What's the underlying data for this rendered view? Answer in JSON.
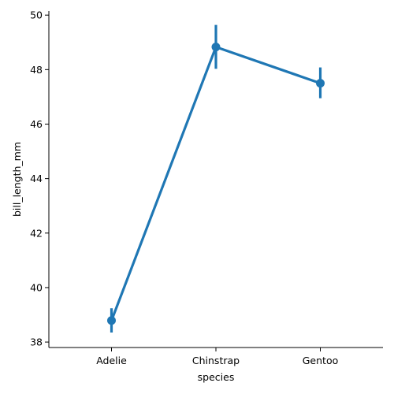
{
  "chart_data": {
    "type": "line",
    "xlabel": "species",
    "ylabel": "bill_length_mm",
    "categories": [
      "Adelie",
      "Chinstrap",
      "Gentoo"
    ],
    "series": [
      {
        "values": [
          38.79,
          48.83,
          47.5
        ],
        "ci_low": [
          38.35,
          48.03,
          46.95
        ],
        "ci_high": [
          39.24,
          49.64,
          48.08
        ],
        "color": "#1f77b4"
      }
    ],
    "ylim": [
      37.8,
      50.15
    ],
    "yticks": [
      38,
      40,
      42,
      44,
      46,
      48,
      50
    ],
    "yticks_text": [
      "38",
      "40",
      "42",
      "44",
      "46",
      "48",
      "50"
    ],
    "grid": false,
    "legend": "none"
  }
}
